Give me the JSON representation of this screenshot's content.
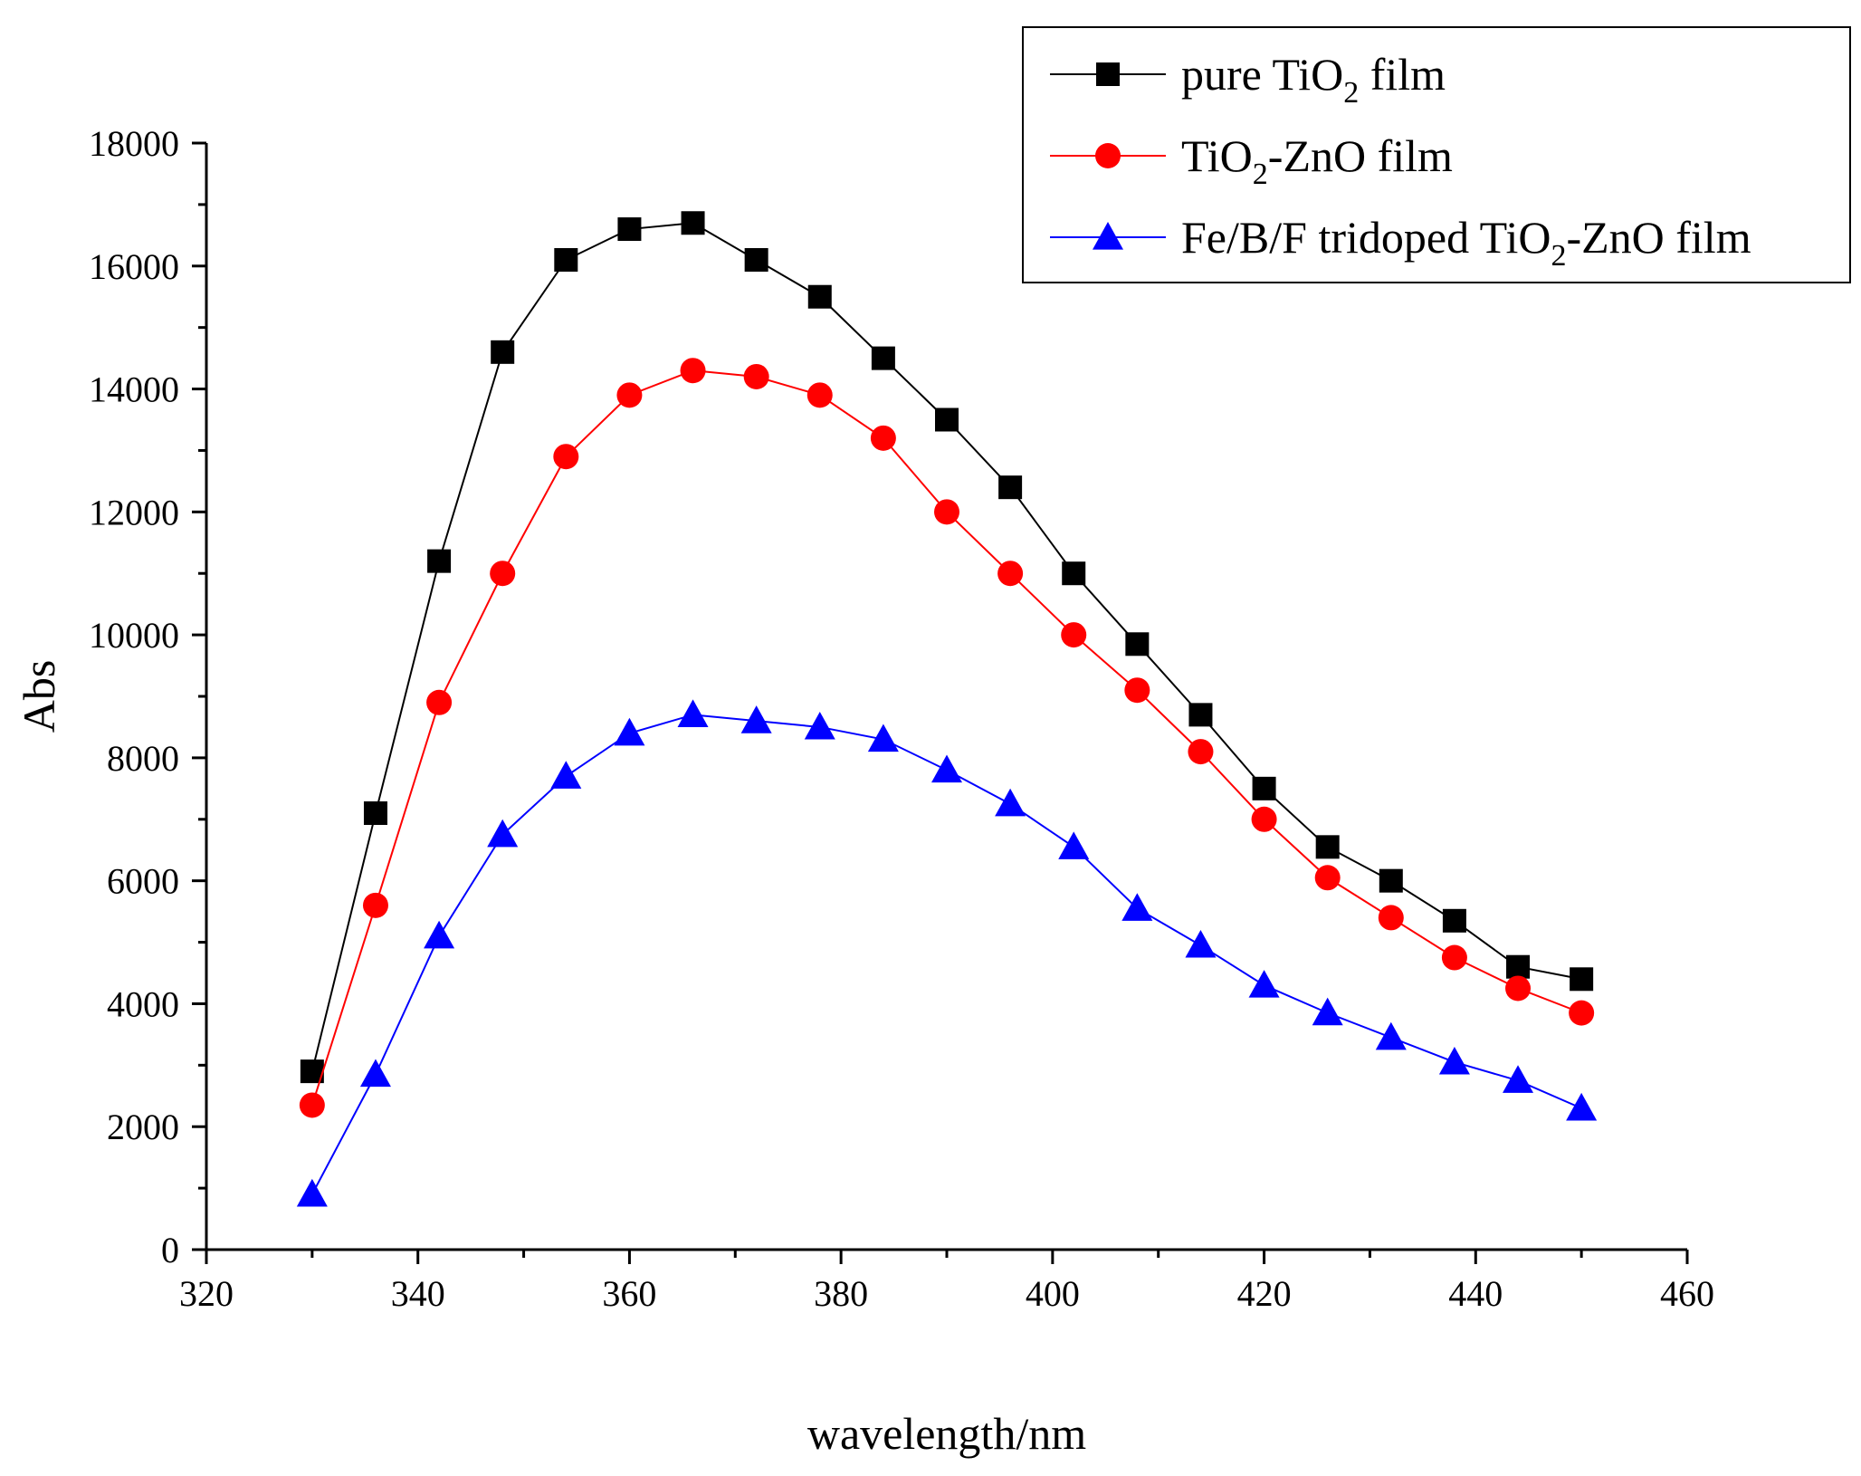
{
  "chart_data": {
    "type": "line",
    "title": "",
    "xlabel": "wavelength/nm",
    "ylabel": "Abs",
    "xlim": [
      320,
      460
    ],
    "ylim": [
      0,
      18000
    ],
    "x_ticks": [
      320,
      340,
      360,
      380,
      400,
      420,
      440,
      460
    ],
    "y_ticks": [
      0,
      2000,
      4000,
      6000,
      8000,
      10000,
      12000,
      14000,
      16000,
      18000
    ],
    "grid": false,
    "legend_position": "top-right",
    "x": [
      330,
      336,
      342,
      348,
      354,
      360,
      366,
      372,
      378,
      384,
      390,
      396,
      402,
      408,
      414,
      420,
      426,
      432,
      438,
      444,
      450
    ],
    "series": [
      {
        "name": "pure TiO2  film",
        "label_parts": [
          [
            "pure TiO",
            false
          ],
          [
            "2",
            true
          ],
          [
            "  film",
            false
          ]
        ],
        "color": "#000000",
        "marker": "square",
        "values": [
          2900,
          7100,
          11200,
          14600,
          16100,
          16600,
          16700,
          16100,
          15500,
          14500,
          13500,
          12400,
          11000,
          9850,
          8700,
          7500,
          6550,
          6000,
          5350,
          4600,
          4400
        ]
      },
      {
        "name": "TiO2-ZnO film",
        "label_parts": [
          [
            "TiO",
            false
          ],
          [
            "2",
            true
          ],
          [
            "-ZnO film",
            false
          ]
        ],
        "color": "#ff0000",
        "marker": "circle",
        "values": [
          2350,
          5600,
          8900,
          11000,
          12900,
          13900,
          14300,
          14200,
          13900,
          13200,
          12000,
          11000,
          10000,
          9100,
          8100,
          7000,
          6050,
          5400,
          4750,
          4250,
          3850
        ]
      },
      {
        "name": "Fe/B/F tridoped TiO2-ZnO film",
        "label_parts": [
          [
            "Fe/B/F tridoped TiO",
            false
          ],
          [
            "2",
            true
          ],
          [
            "-ZnO film",
            false
          ]
        ],
        "color": "#0000ff",
        "marker": "triangle",
        "values": [
          900,
          2850,
          5100,
          6750,
          7700,
          8400,
          8700,
          8600,
          8500,
          8300,
          7800,
          7250,
          6550,
          5550,
          4950,
          4300,
          3850,
          3450,
          3050,
          2750,
          2300
        ]
      }
    ]
  }
}
